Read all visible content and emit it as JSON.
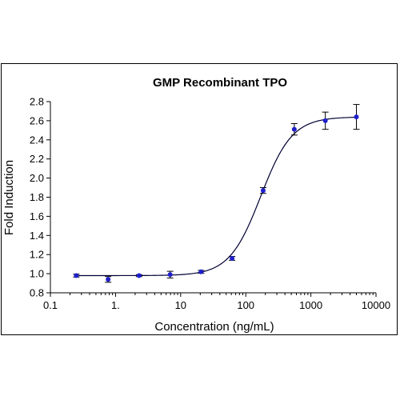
{
  "chart_data": {
    "type": "scatter",
    "title": "GMP Recombinant TPO",
    "xlabel": "Concentration (ng/mL)",
    "ylabel": "Fold Induction",
    "xscale": "log",
    "xlim": [
      0.1,
      10000
    ],
    "ylim": [
      0.8,
      2.8
    ],
    "x_tick_values": [
      0.1,
      1,
      10,
      100,
      1000,
      10000
    ],
    "x_tick_labels": [
      "0.1",
      "1.",
      "10",
      "100",
      "1000",
      "10000"
    ],
    "y_tick_values": [
      0.8,
      1.0,
      1.2,
      1.4,
      1.6,
      1.8,
      2.0,
      2.2,
      2.4,
      2.6,
      2.8
    ],
    "y_tick_labels": [
      "0.8",
      "1.0",
      "1.2",
      "1.4",
      "1.6",
      "1.8",
      "2.0",
      "2.2",
      "2.4",
      "2.6",
      "2.8"
    ],
    "grid": false,
    "series": [
      {
        "x": [
          0.25,
          0.77,
          2.3,
          6.9,
          20.6,
          61.7,
          185,
          556,
          1667,
          5000
        ],
        "y": [
          0.98,
          0.94,
          0.98,
          0.99,
          1.02,
          1.16,
          1.87,
          2.51,
          2.6,
          2.64
        ],
        "error": [
          0.015,
          0.03,
          0.01,
          0.035,
          0.015,
          0.02,
          0.03,
          0.06,
          0.09,
          0.13
        ],
        "marker_color": "#1f1fcc",
        "fit_curve": {
          "model": "4PL",
          "bottom": 0.98,
          "top": 2.64,
          "ec50": 170,
          "hill": 1.8,
          "color": "#000033"
        }
      }
    ]
  }
}
